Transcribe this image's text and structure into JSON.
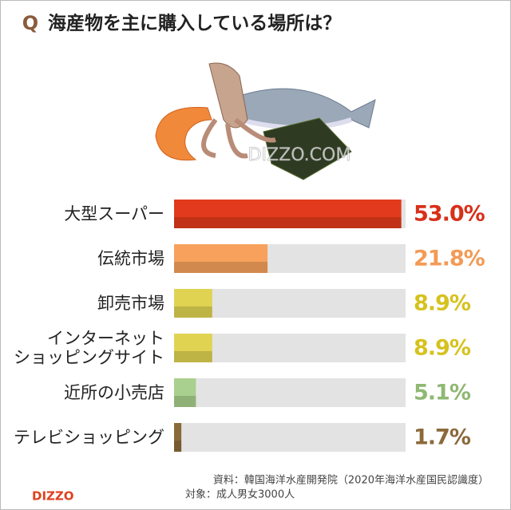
{
  "chart_data": {
    "type": "bar",
    "title_mark": "Q",
    "title": "海産物を主に購入している場所は？",
    "categories": [
      "大型スーパー",
      "伝統市場",
      "卸売市場",
      "インターネット\nショッピングサイト",
      "近所の小売店",
      "テレビショッピング"
    ],
    "values": [
      53.0,
      21.8,
      8.9,
      8.9,
      5.1,
      1.7
    ],
    "value_labels": [
      "53.0%",
      "21.8%",
      "8.9%",
      "8.9%",
      "5.1%",
      "1.7%"
    ],
    "colors": [
      "#e23a1c",
      "#f7a15c",
      "#e0d352",
      "#e0d352",
      "#a9d08e",
      "#8b6a3a"
    ],
    "label_colors": [
      "#d8301a",
      "#f39a55",
      "#d6c21e",
      "#d6c21e",
      "#8fb873",
      "#8b6a3a"
    ],
    "xlim": [
      0,
      54
    ],
    "watermark": "DIZZO.COM",
    "source": "資料：韓国海洋水産開発院（2020年海洋水産国民認識度）",
    "target": "対象：成人男女3000人",
    "logo": "DIZZO"
  }
}
